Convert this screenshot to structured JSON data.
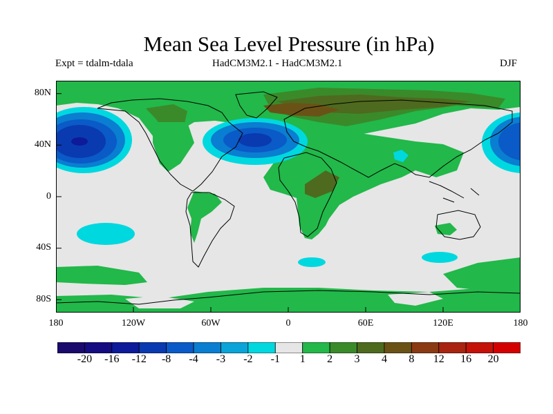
{
  "title": "Mean Sea Level Pressure (in hPa)",
  "subtitle_left": "Expt = tdalm-tdala",
  "subtitle_center": "HadCM3M2.1 - HadCM3M2.1",
  "subtitle_right": "DJF",
  "y_axis": {
    "ticks": [
      {
        "label": "80N",
        "lat": 80
      },
      {
        "label": "40N",
        "lat": 40
      },
      {
        "label": "0",
        "lat": 0
      },
      {
        "label": "40S",
        "lat": -40
      },
      {
        "label": "80S",
        "lat": -80
      }
    ]
  },
  "x_axis": {
    "ticks": [
      {
        "label": "180",
        "lon": -180
      },
      {
        "label": "120W",
        "lon": -120
      },
      {
        "label": "60W",
        "lon": -60
      },
      {
        "label": "0",
        "lon": 0
      },
      {
        "label": "60E",
        "lon": 60
      },
      {
        "label": "120E",
        "lon": 120
      },
      {
        "label": "180",
        "lon": 180
      }
    ]
  },
  "colorbar": {
    "colors": [
      "#1a0a6b",
      "#140c80",
      "#0d1a99",
      "#0a3ab0",
      "#0a5ac8",
      "#0a7ed0",
      "#0aa4d8",
      "#00d8e0",
      "#e6e6e6",
      "#22b84a",
      "#3a8a2a",
      "#4e6a1e",
      "#6a5216",
      "#8a3a12",
      "#a82410",
      "#c41208",
      "#d40000"
    ],
    "labels": [
      "-20",
      "-16",
      "-12",
      "-8",
      "-4",
      "-3",
      "-2",
      "-1",
      "1",
      "2",
      "3",
      "4",
      "8",
      "12",
      "16",
      "20"
    ]
  },
  "colors": {
    "background_zero": "#e6e6e6",
    "green": "#22b84a",
    "dark_green": "#3a8a2a",
    "olive": "#4e6a1e",
    "brown": "#6a5216",
    "cyan": "#00d8e0",
    "blue": "#0a7ed0",
    "mid_blue": "#0a5ac8",
    "deep_blue": "#0a3ab0",
    "navy": "#0d1a99"
  }
}
